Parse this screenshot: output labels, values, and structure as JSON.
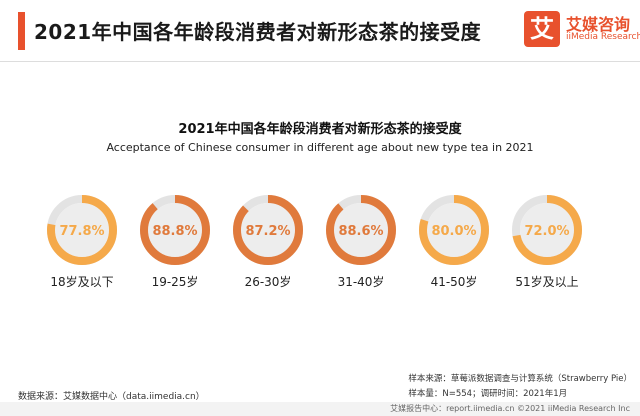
{
  "header": {
    "title": "2021年中国各年龄段消费者对新形态茶的接受度",
    "logo_mark": "艾",
    "logo_cn": "艾媒咨询",
    "logo_en": "iiMedia Research"
  },
  "chart_data": {
    "type": "pie",
    "title": "2021年中国各年龄段消费者对新形态茶的接受度",
    "subtitle": "Acceptance of Chinese consumer in different age about new type tea in 2021",
    "categories": [
      "18岁及以下",
      "19-25岁",
      "26-30岁",
      "31-40岁",
      "41-50岁",
      "51岁及以上"
    ],
    "values": [
      77.8,
      88.8,
      87.2,
      88.6,
      80.0,
      72.0
    ],
    "labels": [
      "77.8%",
      "88.8%",
      "87.2%",
      "88.6%",
      "80.0%",
      "72.0%"
    ],
    "max": 100
  },
  "colors": {
    "accent": "#e8512d",
    "ring_dark": "#e07a3c",
    "ring_light": "#f5a94a",
    "track": "#e3e3e3"
  },
  "footer": {
    "source": "数据来源：艾媒数据中心（data.iimedia.cn）",
    "sample_source": "样本来源：草莓派数据调查与计算系统（Strawberry Pie）",
    "sample_info": "样本量：N=554；调研时间：2021年1月",
    "report": "艾媒报告中心：report.iimedia.cn    ©2021  iiMedia Research  Inc"
  }
}
